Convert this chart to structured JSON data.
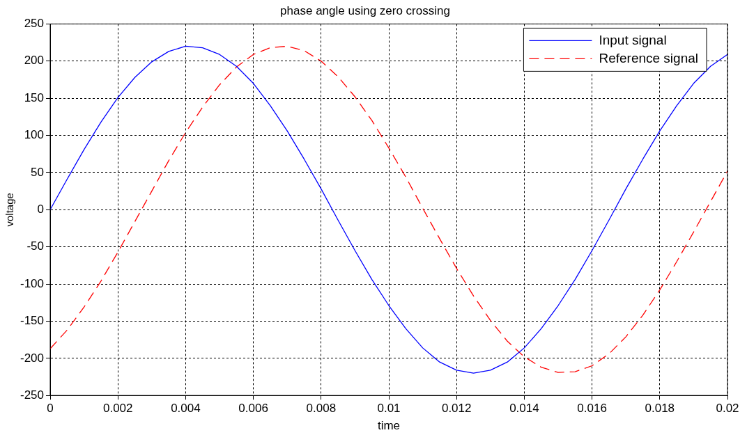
{
  "chart_data": {
    "type": "line",
    "title": "phase angle using zero crossing",
    "xlabel": "time",
    "ylabel": "voltage",
    "x": [
      0,
      0.0005,
      0.001,
      0.0015,
      0.002,
      0.0025,
      0.003,
      0.0035,
      0.004,
      0.0045,
      0.005,
      0.0055,
      0.006,
      0.0065,
      0.007,
      0.0075,
      0.008,
      0.0085,
      0.009,
      0.0095,
      0.01,
      0.0105,
      0.011,
      0.0115,
      0.012,
      0.0125,
      0.013,
      0.0135,
      0.014,
      0.0145,
      0.015,
      0.0155,
      0.016,
      0.0165,
      0.017,
      0.0175,
      0.018,
      0.0185,
      0.019,
      0.0195,
      0.02
    ],
    "series": [
      {
        "name": "Input signal",
        "color": "#0000ff",
        "line_style": "solid",
        "values": [
          0,
          41,
          81,
          118,
          151,
          178,
          199,
          213,
          220,
          218,
          209,
          193,
          170,
          140,
          106,
          68,
          28,
          -14,
          -55,
          -94,
          -129,
          -160,
          -186,
          -205,
          -216,
          -220,
          -216,
          -205,
          -186,
          -160,
          -129,
          -94,
          -55,
          -14,
          28,
          68,
          106,
          140,
          170,
          193,
          209
        ]
      },
      {
        "name": "Reference signal",
        "color": "#ff0000",
        "line_style": "dashed",
        "values": [
          -187,
          -162,
          -131,
          -96,
          -57,
          -16,
          25,
          66,
          104,
          138,
          168,
          192,
          209,
          218,
          220,
          214,
          200,
          179,
          152,
          120,
          83,
          44,
          2,
          -39,
          -79,
          -116,
          -149,
          -177,
          -198,
          -212,
          -219,
          -218,
          -210,
          -194,
          -171,
          -142,
          -108,
          -70,
          -30,
          11,
          52
        ]
      }
    ],
    "xlim": [
      0,
      0.02
    ],
    "xticks": [
      0,
      0.002,
      0.004,
      0.006,
      0.008,
      0.01,
      0.012,
      0.014,
      0.016,
      0.018,
      0.02
    ],
    "ylim": [
      -250,
      250
    ],
    "yticks": [
      -250,
      -200,
      -150,
      -100,
      -50,
      0,
      50,
      100,
      150,
      200,
      250
    ],
    "grid": true,
    "legend": "top right",
    "marker": "none"
  }
}
